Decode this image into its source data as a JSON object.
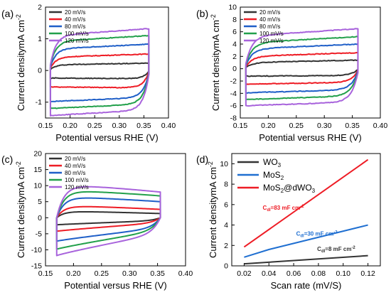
{
  "colors": {
    "s20": "#333333",
    "s40": "#ee1c25",
    "s80": "#1f5fc8",
    "s100": "#22a04b",
    "s120": "#a863dc",
    "wo3": "#333333",
    "mos2": "#1f6fd1",
    "mos2dwo3": "#ee1c25"
  },
  "chart_data": [
    {
      "panel": "(a)",
      "type": "line",
      "plot_kind": "cv",
      "xlabel": "Potential versus RHE (V)",
      "ylabel": "Current densitymA cm",
      "ylabel_sup": "-2",
      "xlim": [
        0.15,
        0.4
      ],
      "ylim": [
        -1.5,
        2.0
      ],
      "xticks": [
        0.15,
        0.2,
        0.25,
        0.3,
        0.35,
        0.4
      ],
      "xtick_labels": [
        "0.15",
        "0.20",
        "0.25",
        "0.30",
        "0.35",
        "0.40"
      ],
      "yticks": [
        -1,
        0,
        1,
        2
      ],
      "ytick_labels": [
        "-1",
        "0",
        "1",
        "2"
      ],
      "legend_position": "top-left",
      "x_range": [
        0.16,
        0.36
      ],
      "series": [
        {
          "name": "20 mV/s",
          "color_key": "s20",
          "upper": 0.18,
          "lower": -0.26,
          "upper_start": 0.16,
          "lower_start": -0.24,
          "slope": 0.05
        },
        {
          "name": "40 mV/s",
          "color_key": "s40",
          "upper": 0.42,
          "lower": -0.55,
          "upper_start": 0.38,
          "lower_start": -0.52,
          "slope": 0.1
        },
        {
          "name": "80 mV/s",
          "color_key": "s80",
          "upper": 0.68,
          "lower": -0.85,
          "upper_start": 0.6,
          "lower_start": -0.98,
          "slope": 0.15
        },
        {
          "name": "100 mV/s",
          "color_key": "s100",
          "upper": 0.92,
          "lower": -1.05,
          "upper_start": 0.82,
          "lower_start": -1.2,
          "slope": 0.18
        },
        {
          "name": "120 mV/s",
          "color_key": "s120",
          "upper": 1.1,
          "lower": -1.25,
          "upper_start": 0.95,
          "lower_start": -1.42,
          "slope": 0.22
        }
      ]
    },
    {
      "panel": "(b)",
      "type": "line",
      "plot_kind": "cv",
      "xlabel": "Potential versus RHE (V)",
      "ylabel": "Current densitymA cm",
      "ylabel_sup": "-2",
      "xlim": [
        0.15,
        0.4
      ],
      "ylim": [
        -8,
        10
      ],
      "xticks": [
        0.15,
        0.2,
        0.25,
        0.3,
        0.35,
        0.4
      ],
      "xtick_labels": [
        "0.15",
        "0.20",
        "0.25",
        "0.30",
        "0.35",
        "0.40"
      ],
      "yticks": [
        -8,
        -6,
        -4,
        -2,
        0,
        2,
        4,
        6,
        8,
        10
      ],
      "ytick_labels": [
        "-8",
        "-6",
        "-4",
        "-2",
        "0",
        "2",
        "4",
        "6",
        "8",
        "10"
      ],
      "legend_position": "top-left",
      "x_range": [
        0.16,
        0.36
      ],
      "series": [
        {
          "name": "20 mV/s",
          "color_key": "s20",
          "upper": 1.0,
          "lower": -1.1,
          "upper_start": 0.8,
          "lower_start": -1.2,
          "slope": 0.4
        },
        {
          "name": "40 mV/s",
          "color_key": "s40",
          "upper": 2.0,
          "lower": -2.2,
          "upper_start": 1.6,
          "lower_start": -2.5,
          "slope": 0.6
        },
        {
          "name": "80 mV/s",
          "color_key": "s80",
          "upper": 3.2,
          "lower": -3.4,
          "upper_start": 2.6,
          "lower_start": -3.9,
          "slope": 0.8
        },
        {
          "name": "100 mV/s",
          "color_key": "s100",
          "upper": 4.2,
          "lower": -4.4,
          "upper_start": 3.4,
          "lower_start": -5.0,
          "slope": 1.0
        },
        {
          "name": "120 mV/s",
          "color_key": "s120",
          "upper": 5.3,
          "lower": -5.4,
          "upper_start": 4.5,
          "lower_start": -6.0,
          "slope": 1.2
        }
      ]
    },
    {
      "panel": "(c)",
      "type": "line",
      "plot_kind": "cv-tapered",
      "xlabel": "Potential versus RHE (V)",
      "ylabel": "Current densitymA cm",
      "ylabel_sup": "-2",
      "xlim": [
        0.15,
        0.4
      ],
      "ylim": [
        -15,
        20
      ],
      "xticks": [
        0.15,
        0.2,
        0.25,
        0.3,
        0.35,
        0.4
      ],
      "xtick_labels": [
        "0.15",
        "0.20",
        "0.25",
        "0.30",
        "0.35",
        "0.40"
      ],
      "yticks": [
        -15,
        -10,
        -5,
        0,
        5,
        10,
        15,
        20
      ],
      "ytick_labels": [
        "-15",
        "-10",
        "-5",
        "0",
        "5",
        "10",
        "15",
        "20"
      ],
      "legend_position": "top-left",
      "x_range": [
        0.17,
        0.355
      ],
      "series": [
        {
          "name": "20 mV/s",
          "color_key": "s20",
          "upper_peak": 2.0,
          "upper_end": 1.3,
          "lower_start": -2.2,
          "lower_end": -0.9
        },
        {
          "name": "40 mV/s",
          "color_key": "s40",
          "upper_peak": 3.7,
          "upper_end": 2.6,
          "lower_start": -4.2,
          "lower_end": -1.6
        },
        {
          "name": "80 mV/s",
          "color_key": "s80",
          "upper_peak": 6.5,
          "upper_end": 5.0,
          "lower_start": -7.3,
          "lower_end": -3.2
        },
        {
          "name": "100 mV/s",
          "color_key": "s100",
          "upper_peak": 8.5,
          "upper_end": 6.8,
          "lower_start": -9.8,
          "lower_end": -4.0
        },
        {
          "name": "120 mV/s",
          "color_key": "s120",
          "upper_peak": 10.2,
          "upper_end": 8.0,
          "lower_start": -11.8,
          "lower_end": -5.0
        }
      ]
    },
    {
      "panel": "(d)",
      "type": "line",
      "plot_kind": "linear",
      "xlabel": "Scan rate (mV/S)",
      "ylabel": "Current densitymA cm",
      "ylabel_sup": "-2",
      "xlim": [
        0.01,
        0.13
      ],
      "ylim": [
        0,
        11
      ],
      "xticks": [
        0.02,
        0.04,
        0.06,
        0.08,
        0.1,
        0.12
      ],
      "xtick_labels": [
        "0.02",
        "0.04",
        "0.06",
        "0.08",
        "0.10",
        "0.12"
      ],
      "yticks": [
        0,
        2,
        4,
        6,
        8,
        10
      ],
      "ytick_labels": [
        "0",
        "2",
        "4",
        "6",
        "8",
        "10"
      ],
      "legend_position": "top-left",
      "series": [
        {
          "name": "WO",
          "sub": "3",
          "sub2": "",
          "tail": "",
          "color_key": "wo3",
          "x": [
            0.02,
            0.12
          ],
          "y": [
            0.2,
            1.0
          ]
        },
        {
          "name": "MoS",
          "sub": "2",
          "sub2": "",
          "tail": "",
          "color_key": "mos2",
          "x": [
            0.02,
            0.04,
            0.12
          ],
          "y": [
            0.85,
            1.6,
            4.0
          ]
        },
        {
          "name": "MoS",
          "sub": "2",
          "tail": "@dWO",
          "sub2": "3",
          "color_key": "mos2dwo3",
          "x": [
            0.02,
            0.12
          ],
          "y": [
            1.85,
            10.4
          ]
        }
      ],
      "annotations": [
        {
          "prefix": "C",
          "sub": "dl",
          "text": "=83 mF cm",
          "sup": "-2",
          "color_key": "mos2dwo3",
          "x": 0.035,
          "y": 5.5
        },
        {
          "prefix": "C",
          "sub": "dl",
          "text": "=30 mF cm",
          "sup": "-2",
          "color_key": "mos2",
          "x": 0.062,
          "y": 2.95
        },
        {
          "prefix": "C",
          "sub": "dl",
          "text": "=8 mF cm",
          "sup": "-2",
          "color_key": "wo3",
          "x": 0.079,
          "y": 1.45
        }
      ]
    }
  ]
}
